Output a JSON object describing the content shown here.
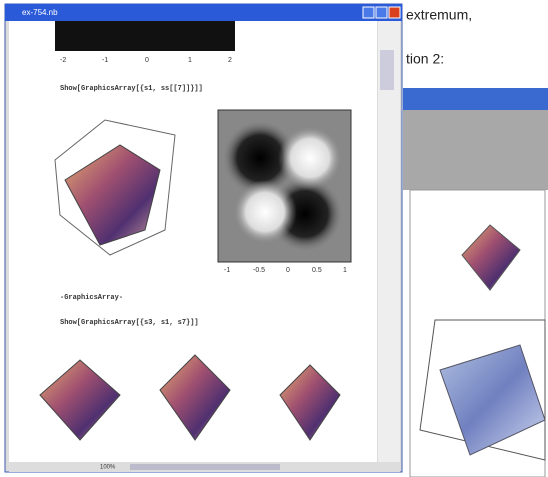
{
  "window": {
    "title": "ex-754.nb"
  },
  "notebook": {
    "cells": [
      "Show[GraphicsArray[{s1, ss[[7]]}]]",
      "-GraphicsArray-",
      "Show[GraphicsArray[{s3, s1, s7}]]"
    ],
    "top_plot_ticks": [
      "-2",
      "-1",
      "0",
      "1",
      "2"
    ],
    "contour_ticks": [
      "-1",
      "-0.5",
      "0",
      "0.5",
      "1"
    ]
  },
  "status": {
    "zoom": "100%"
  },
  "background_doc": {
    "lines": [
      "extremum,",
      "tion 2:"
    ]
  }
}
